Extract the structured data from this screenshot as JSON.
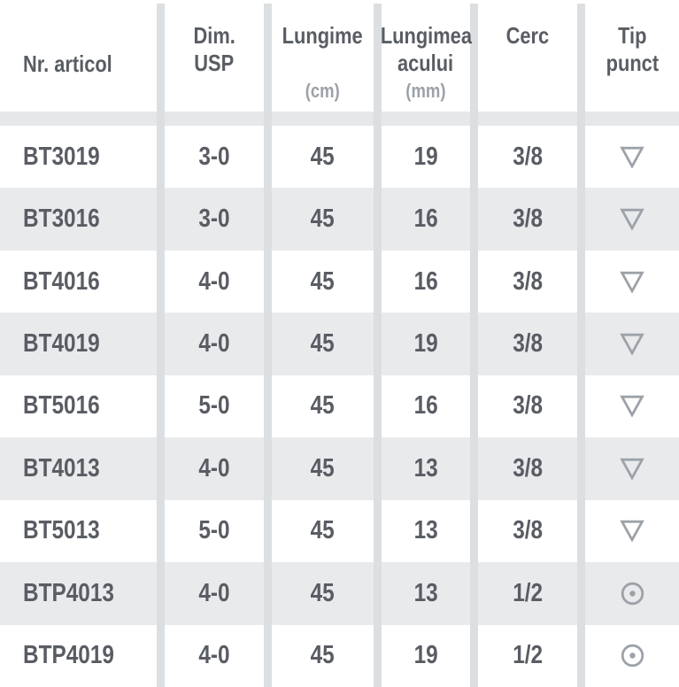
{
  "header": {
    "articol": {
      "line1": "Nr. articol"
    },
    "usp": {
      "line1": "Dim.",
      "line2": "USP"
    },
    "lungime": {
      "line1": "Lungime",
      "unit": "(cm)"
    },
    "ac": {
      "line1": "Lungimea",
      "line2": "acului",
      "unit": "(mm)"
    },
    "cerc": {
      "line1": "Cerc"
    },
    "tip": {
      "line1": "Tip",
      "line2": "punct"
    }
  },
  "rows": [
    {
      "article": "BT3019",
      "usp": "3-0",
      "length_cm": "45",
      "needle_mm": "19",
      "circle": "3/8",
      "tip": "triangle-down"
    },
    {
      "article": "BT3016",
      "usp": "3-0",
      "length_cm": "45",
      "needle_mm": "16",
      "circle": "3/8",
      "tip": "triangle-down"
    },
    {
      "article": "BT4016",
      "usp": "4-0",
      "length_cm": "45",
      "needle_mm": "16",
      "circle": "3/8",
      "tip": "triangle-down"
    },
    {
      "article": "BT4019",
      "usp": "4-0",
      "length_cm": "45",
      "needle_mm": "19",
      "circle": "3/8",
      "tip": "triangle-down"
    },
    {
      "article": "BT5016",
      "usp": "5-0",
      "length_cm": "45",
      "needle_mm": "16",
      "circle": "3/8",
      "tip": "triangle-down"
    },
    {
      "article": "BT4013",
      "usp": "4-0",
      "length_cm": "45",
      "needle_mm": "13",
      "circle": "3/8",
      "tip": "triangle-down"
    },
    {
      "article": "BT5013",
      "usp": "5-0",
      "length_cm": "45",
      "needle_mm": "13",
      "circle": "3/8",
      "tip": "triangle-down"
    },
    {
      "article": "BTP4013",
      "usp": "4-0",
      "length_cm": "45",
      "needle_mm": "13",
      "circle": "1/2",
      "tip": "circle-dot"
    },
    {
      "article": "BTP4019",
      "usp": "4-0",
      "length_cm": "45",
      "needle_mm": "19",
      "circle": "1/2",
      "tip": "circle-dot"
    }
  ],
  "colors": {
    "text": "#595d63",
    "muted_text": "#9ba1a7",
    "separator": "#dbdfe2",
    "alt_row": "#e8eaec",
    "icon": "#9ca2a8"
  },
  "chart_data": {
    "type": "table",
    "columns": [
      "Nr. articol",
      "Dim. USP",
      "Lungime (cm)",
      "Lungimea acului (mm)",
      "Cerc",
      "Tip punct"
    ],
    "rows": [
      [
        "BT3019",
        "3-0",
        "45",
        "19",
        "3/8",
        "triangle-down"
      ],
      [
        "BT3016",
        "3-0",
        "45",
        "16",
        "3/8",
        "triangle-down"
      ],
      [
        "BT4016",
        "4-0",
        "45",
        "16",
        "3/8",
        "triangle-down"
      ],
      [
        "BT4019",
        "4-0",
        "45",
        "19",
        "3/8",
        "triangle-down"
      ],
      [
        "BT5016",
        "5-0",
        "45",
        "16",
        "3/8",
        "triangle-down"
      ],
      [
        "BT4013",
        "4-0",
        "45",
        "13",
        "3/8",
        "triangle-down"
      ],
      [
        "BT5013",
        "5-0",
        "45",
        "13",
        "3/8",
        "triangle-down"
      ],
      [
        "BTP4013",
        "4-0",
        "45",
        "13",
        "1/2",
        "circle-dot"
      ],
      [
        "BTP4019",
        "4-0",
        "45",
        "19",
        "1/2",
        "circle-dot"
      ]
    ]
  }
}
